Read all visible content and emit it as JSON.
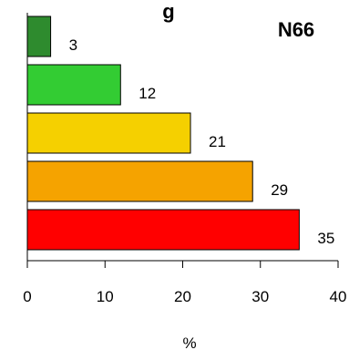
{
  "chart_data": {
    "type": "bar",
    "orientation": "horizontal",
    "title": "g",
    "panel_label": "N66",
    "xlabel": "%",
    "ylabel": "",
    "xlim": [
      0,
      40
    ],
    "x_ticks": [
      0,
      10,
      20,
      30,
      40
    ],
    "grid": false,
    "legend": "none",
    "values": [
      3,
      12,
      21,
      29,
      35
    ],
    "colors": [
      "#2e8b2e",
      "#33cc33",
      "#f5d000",
      "#f5a300",
      "#ff0000"
    ]
  }
}
